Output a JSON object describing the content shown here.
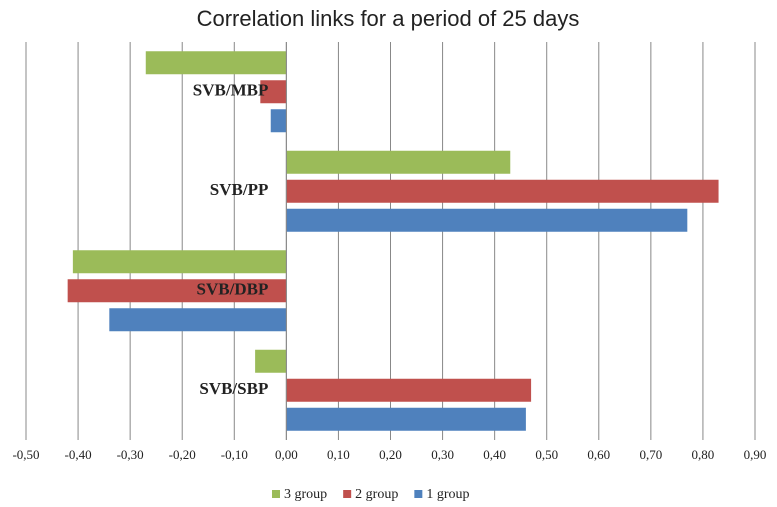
{
  "chart_data": {
    "type": "bar",
    "orientation": "horizontal",
    "title": "Correlation links for a period of 25 days",
    "categories": [
      "SVB/MBP",
      "SVB/PP",
      "SVB/DBP",
      "SVB/SBP"
    ],
    "series": [
      {
        "name": "3 group",
        "color": "#9bbb59",
        "values": [
          -0.27,
          0.43,
          -0.41,
          -0.06
        ]
      },
      {
        "name": "2 group",
        "color": "#c0504d",
        "values": [
          -0.05,
          0.83,
          -0.42,
          0.47
        ]
      },
      {
        "name": "1 group",
        "color": "#4f81bd",
        "values": [
          -0.03,
          0.77,
          -0.34,
          0.46
        ]
      }
    ],
    "xlim": [
      -0.5,
      0.9
    ],
    "xticks": [
      {
        "value": -0.5,
        "label": "-0,50"
      },
      {
        "value": -0.4,
        "label": "-0,40"
      },
      {
        "value": -0.3,
        "label": "-0,30"
      },
      {
        "value": -0.2,
        "label": "-0,20"
      },
      {
        "value": -0.1,
        "label": "-0,10"
      },
      {
        "value": 0,
        "label": "0,00"
      },
      {
        "value": 0.1,
        "label": "0,10"
      },
      {
        "value": 0.2,
        "label": "0,20"
      },
      {
        "value": 0.3,
        "label": "0,30"
      },
      {
        "value": 0.4,
        "label": "0,40"
      },
      {
        "value": 0.5,
        "label": "0,50"
      },
      {
        "value": 0.6,
        "label": "0,60"
      },
      {
        "value": 0.7,
        "label": "0,70"
      },
      {
        "value": 0.8,
        "label": "0,80"
      },
      {
        "value": 0.9,
        "label": "0,90"
      }
    ],
    "grid": true,
    "legend": "bottom"
  }
}
